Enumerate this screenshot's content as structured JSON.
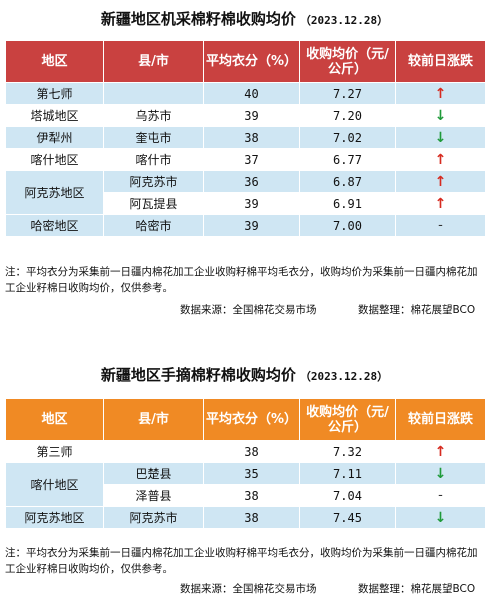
{
  "section1": {
    "title": "新疆地区机采棉籽棉收购均价",
    "date": "（2023.12.28）",
    "headers": {
      "region": "地区",
      "county": "县/市",
      "avg_lint": "平均衣分（%）",
      "avg_price": "收购均价（元/公斤）",
      "change": "较前日涨跌"
    },
    "rows": [
      {
        "region": "第七师",
        "county": "",
        "lint": "40",
        "price": "7.27",
        "trend": "↑"
      },
      {
        "region": "塔城地区",
        "county": "乌苏市",
        "lint": "39",
        "price": "7.20",
        "trend": "↓"
      },
      {
        "region": "伊犁州",
        "county": "奎屯市",
        "lint": "38",
        "price": "7.02",
        "trend": "↓"
      },
      {
        "region": "喀什地区",
        "county": "喀什市",
        "lint": "37",
        "price": "6.77",
        "trend": "↑"
      },
      {
        "region": "阿克苏地区",
        "county": "阿克苏市",
        "lint": "36",
        "price": "6.87",
        "trend": "↑"
      },
      {
        "region": "",
        "county": "阿瓦提县",
        "lint": "39",
        "price": "6.91",
        "trend": "↑"
      },
      {
        "region": "哈密地区",
        "county": "哈密市",
        "lint": "39",
        "price": "7.00",
        "trend": "-"
      }
    ],
    "note": "注：平均衣分为采集前一日疆内棉花加工企业收购籽棉平均毛衣分，收购均价为采集前一日疆内棉花加工企业籽棉日收购均价，仅供参考。",
    "source": "数据来源：全国棉花交易市场",
    "compiler": "数据整理：棉花展望BCO"
  },
  "section2": {
    "title": "新疆地区手摘棉籽棉收购均价",
    "date": "（2023.12.28）",
    "headers": {
      "region": "地区",
      "county": "县/市",
      "avg_lint": "平均衣分（%）",
      "avg_price": "收购均价（元/公斤）",
      "change": "较前日涨跌"
    },
    "rows": [
      {
        "region": "第三师",
        "county": "",
        "lint": "38",
        "price": "7.32",
        "trend": "↑"
      },
      {
        "region": "喀什地区",
        "county": "巴楚县",
        "lint": "35",
        "price": "7.11",
        "trend": "↓"
      },
      {
        "region": "",
        "county": "泽普县",
        "lint": "38",
        "price": "7.04",
        "trend": "-"
      },
      {
        "region": "阿克苏地区",
        "county": "阿克苏市",
        "lint": "38",
        "price": "7.45",
        "trend": "↓"
      }
    ],
    "note": "注：平均衣分为采集前一日疆内棉花加工企业收购籽棉平均毛衣分，收购均价为采集前一日疆内棉花加工企业籽棉日收购均价，仅供参考。",
    "source": "数据来源：全国棉花交易市场",
    "compiler": "数据整理：棉花展望BCO"
  },
  "colors": {
    "header1": "#c94140",
    "header2": "#f08a24",
    "row_blue": "#cfe6f3",
    "up": "#d62b20",
    "down": "#1f9a3a"
  }
}
